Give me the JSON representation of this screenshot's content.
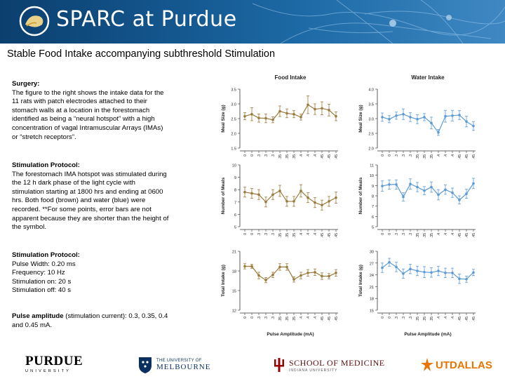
{
  "header": {
    "title": "SPARC at Purdue"
  },
  "slide": {
    "title": "Stable Food Intake accompanying subthreshold Stimulation"
  },
  "surgery": {
    "heading": "Surgery:",
    "lines": [
      "The figure to the right shows the intake data for the",
      "11 rats with patch electrodes attached to their",
      "stomach walls at a location in the forestomach",
      "identified as being a “neural hotspot” with a high",
      "concentration of vagal Intramuscular Arrays (IMAs)",
      "or “stretch receptors”."
    ]
  },
  "protocol1": {
    "heading": "Stimulation Protocol:",
    "lines": [
      "The forestomach IMA hotspot was stimulated during",
      "the 12 h dark phase of the light cycle with",
      "stimulation starting at 1800 hrs and ending at 0600",
      "hrs.  Both food (brown) and water (blue) were",
      "recorded.  **For some points, error bars are not",
      "apparent because they are shorter than the height of",
      "the symbol."
    ]
  },
  "protocol2": {
    "heading": "Stimulation Protocol:",
    "lines": [
      "Pulse Width: 0.20 ms",
      "Frequency: 10 Hz",
      "Stimulation on: 20 s",
      "Stimulation off: 40 s"
    ]
  },
  "amplitude": {
    "heading": "Pulse amplitude",
    "rest": " (stimulation current): 0.3, 0.35, 0.4",
    "line2": "and 0.45 mA."
  },
  "footer": {
    "purdue": "PURDUE",
    "purdue_sub": "UNIVERSITY",
    "melbourne_1": "THE UNIVERSITY OF",
    "melbourne_2": "MELBOURNE",
    "iu_1": "SCHOOL OF MEDICINE",
    "iu_2": "INDIANA UNIVERSITY",
    "utd": "UTDALLAS"
  },
  "colors": {
    "food": "#9c7a3c",
    "water": "#5b9bd5",
    "banner": "#14578f"
  },
  "chart_data": [
    {
      "type": "line",
      "title": "Food Intake",
      "ylabel": "Meal Size (g)",
      "xlabel": "",
      "ylim": [
        1.5,
        3.5
      ],
      "yticks": [
        "1.5",
        "2.0",
        "2.5",
        "3.0",
        "3.5"
      ],
      "categories": [
        "0",
        "0",
        ".3",
        ".3",
        ".3",
        ".35",
        ".35",
        ".35",
        ".4",
        ".4",
        ".4",
        ".45",
        ".45",
        ".45"
      ],
      "values": [
        2.58,
        2.65,
        2.52,
        2.51,
        2.46,
        2.75,
        2.68,
        2.65,
        2.55,
        2.97,
        2.82,
        2.85,
        2.79,
        2.58
      ],
      "errors": [
        0.12,
        0.22,
        0.14,
        0.15,
        0.1,
        0.18,
        0.15,
        0.12,
        0.1,
        0.3,
        0.18,
        0.22,
        0.2,
        0.15
      ]
    },
    {
      "type": "line",
      "title": "Water Intake",
      "ylabel": "Meal Size (g)",
      "xlabel": "",
      "ylim": [
        2.0,
        4.0
      ],
      "yticks": [
        "2.0",
        "2.5",
        "3.0",
        "3.5",
        "4.0"
      ],
      "categories": [
        "0",
        "0",
        ".3",
        ".3",
        ".3",
        ".35",
        ".35",
        ".35",
        ".4",
        ".4",
        ".4",
        ".45",
        ".45",
        ".45"
      ],
      "values": [
        3.05,
        2.98,
        3.1,
        3.15,
        3.05,
        2.98,
        3.05,
        2.85,
        2.53,
        3.08,
        3.1,
        3.12,
        2.9,
        2.75
      ],
      "errors": [
        0.14,
        0.12,
        0.12,
        0.18,
        0.15,
        0.15,
        0.12,
        0.2,
        0.1,
        0.2,
        0.18,
        0.15,
        0.18,
        0.15
      ]
    },
    {
      "type": "line",
      "title": "",
      "ylabel": "Number of Meals",
      "xlabel": "",
      "ylim": [
        5,
        10
      ],
      "yticks": [
        "5",
        "6",
        "7",
        "8",
        "9",
        "10"
      ],
      "categories": [
        "0",
        "0",
        ".3",
        ".3",
        ".3",
        ".35",
        ".35",
        ".35",
        ".4",
        ".4",
        ".4",
        ".45",
        ".45",
        ".45"
      ],
      "values": [
        7.8,
        7.7,
        7.6,
        7.0,
        7.6,
        7.9,
        7.05,
        7.05,
        7.9,
        7.35,
        6.95,
        6.75,
        7.05,
        7.35
      ],
      "errors": [
        0.4,
        0.4,
        0.4,
        0.4,
        0.4,
        0.45,
        0.4,
        0.4,
        0.5,
        0.4,
        0.4,
        0.4,
        0.4,
        0.45
      ]
    },
    {
      "type": "line",
      "title": "",
      "ylabel": "Number of Meals",
      "xlabel": "",
      "ylim": [
        5,
        11
      ],
      "yticks": [
        "5",
        "6",
        "7",
        "8",
        "9",
        "10",
        "11"
      ],
      "categories": [
        "0",
        "0",
        ".3",
        ".3",
        ".3",
        ".35",
        ".35",
        ".35",
        ".4",
        ".4",
        ".4",
        ".45",
        ".45",
        ".45"
      ],
      "values": [
        8.95,
        9.1,
        9.1,
        7.9,
        9.15,
        8.85,
        8.5,
        8.85,
        8.1,
        8.6,
        8.3,
        7.6,
        8.2,
        9.2
      ],
      "errors": [
        0.5,
        0.45,
        0.45,
        0.4,
        0.5,
        0.45,
        0.4,
        0.5,
        0.5,
        0.45,
        0.45,
        0.4,
        0.45,
        0.5
      ]
    },
    {
      "type": "line",
      "title": "",
      "ylabel": "Total Intake (g)",
      "xlabel": "Pulse Amplitude (mA)",
      "ylim": [
        12,
        21
      ],
      "yticks": [
        "12",
        "15",
        "18",
        "21"
      ],
      "categories": [
        "0",
        "0",
        ".3",
        ".3",
        ".3",
        ".35",
        ".35",
        ".35",
        ".4",
        ".4",
        ".4",
        ".45",
        ".45",
        ".45"
      ],
      "values": [
        18.7,
        18.7,
        17.3,
        16.6,
        17.4,
        18.6,
        18.6,
        16.7,
        17.3,
        17.7,
        17.8,
        17.2,
        17.2,
        17.7
      ],
      "errors": [
        0.4,
        0.3,
        0.5,
        0.4,
        0.4,
        0.5,
        0.5,
        0.4,
        0.5,
        0.5,
        0.5,
        0.5,
        0.4,
        0.5
      ]
    },
    {
      "type": "line",
      "title": "",
      "ylabel": "Total Intake (g)",
      "xlabel": "Pulse Amplitude (mA)",
      "ylim": [
        15,
        30
      ],
      "yticks": [
        "15",
        "18",
        "21",
        "24",
        "27",
        "30"
      ],
      "categories": [
        "0",
        "0",
        ".3",
        ".3",
        ".3",
        ".35",
        ".35",
        ".35",
        ".4",
        ".4",
        ".4",
        ".45",
        ".45",
        ".45"
      ],
      "values": [
        25.8,
        27.2,
        26.0,
        24.3,
        25.5,
        25.0,
        24.7,
        24.6,
        25.0,
        24.5,
        24.5,
        23.0,
        22.9,
        24.6
      ],
      "errors": [
        1.2,
        1.0,
        1.2,
        1.2,
        1.2,
        1.2,
        1.4,
        1.2,
        1.2,
        1.2,
        1.2,
        1.2,
        0.8,
        0.8
      ]
    }
  ]
}
